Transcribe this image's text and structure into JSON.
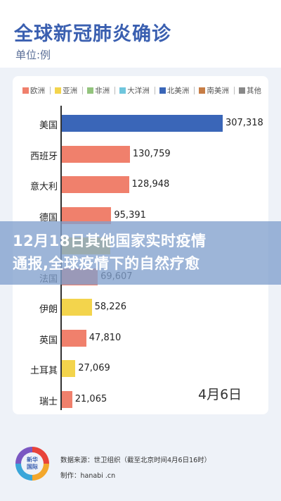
{
  "header": {
    "title": "全球新冠肺炎确诊",
    "unit": "单位:例"
  },
  "colors": {
    "europe": "#f0806c",
    "asia": "#f3d44c",
    "africa": "#93c47d",
    "oceania": "#6fc6dd",
    "north_america": "#3a66b8",
    "south_america": "#c77d45",
    "other": "#888888"
  },
  "chart_data": {
    "type": "bar",
    "orientation": "horizontal",
    "legend": [
      {
        "name": "欧洲",
        "color": "#f0806c"
      },
      {
        "name": "亚洲",
        "color": "#f3d44c"
      },
      {
        "name": "非洲",
        "color": "#93c47d"
      },
      {
        "name": "大洋洲",
        "color": "#6fc6dd"
      },
      {
        "name": "北美洲",
        "color": "#3a66b8"
      },
      {
        "name": "南美洲",
        "color": "#c77d45"
      },
      {
        "name": "其他",
        "color": "#888888"
      }
    ],
    "legend_position": "top",
    "categories": [
      "美国",
      "西班牙",
      "意大利",
      "德国",
      "",
      "法国",
      "伊朗",
      "英国",
      "土耳其",
      "瑞士"
    ],
    "values": [
      307318,
      130759,
      128948,
      95391,
      93000,
      69607,
      58226,
      47810,
      27069,
      21065
    ],
    "value_labels": [
      "307,318",
      "130,759",
      "128,948",
      "95,391",
      "",
      "69,607",
      "58,226",
      "47,810",
      "27,069",
      "21,065"
    ],
    "continents": [
      "north_america",
      "europe",
      "europe",
      "europe",
      "asia",
      "europe",
      "asia",
      "europe",
      "asia",
      "europe"
    ],
    "xlim": [
      0,
      307318
    ],
    "annotation": "4月6日"
  },
  "overlay": {
    "line1": "12月18日其他国家实时疫情",
    "line2": "通报,全球疫情下的自然疗愈"
  },
  "footer": {
    "logo_text_1": "新华",
    "logo_text_2": "国际",
    "source": "数据来源：世卫组织（截至北京时间4月6日16时）",
    "production": "制作：hanabi .cn"
  }
}
